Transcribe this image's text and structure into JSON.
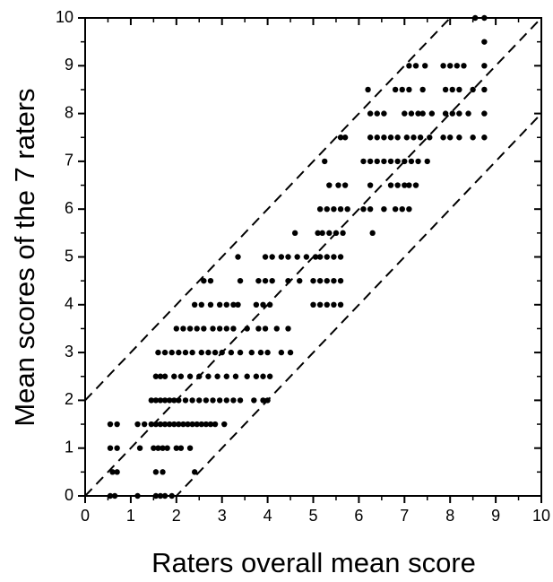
{
  "chart_data": {
    "type": "scatter",
    "x_label": "Raters overall mean score",
    "y_label": "Mean scores of the 7 raters",
    "xlim": [
      0,
      10
    ],
    "ylim": [
      0,
      10
    ],
    "xticks": [
      0,
      1,
      2,
      3,
      4,
      5,
      6,
      7,
      8,
      9,
      10
    ],
    "yticks": [
      0,
      1,
      2,
      3,
      4,
      5,
      6,
      7,
      8,
      9,
      10
    ],
    "xminorticks": [
      0.5,
      1.5,
      2.5,
      3.5,
      4.5,
      5.5,
      6.5,
      7.5,
      8.5,
      9.5
    ],
    "yminorticks": [
      0.5,
      1.5,
      2.5,
      3.5,
      4.5,
      5.5,
      6.5,
      7.5,
      8.5,
      9.5
    ],
    "color": "#000000",
    "reference_lines": [
      {
        "slope": 1,
        "intercept": 2
      },
      {
        "slope": 1,
        "intercept": 0
      },
      {
        "slope": 1,
        "intercept": -2
      }
    ],
    "x": [
      0.55,
      0.65,
      1.15,
      1.55,
      1.65,
      1.75,
      1.9,
      0.6,
      0.7,
      1.55,
      1.7,
      2.4,
      0.55,
      0.7,
      1.2,
      1.5,
      1.6,
      1.7,
      1.8,
      2.0,
      2.1,
      2.3,
      0.55,
      0.7,
      1.15,
      1.3,
      1.45,
      1.55,
      1.65,
      1.75,
      1.85,
      1.95,
      2.05,
      2.15,
      2.25,
      2.35,
      2.45,
      2.55,
      2.65,
      2.75,
      2.85,
      3.05,
      1.45,
      1.55,
      1.65,
      1.75,
      1.85,
      1.95,
      2.05,
      2.2,
      2.35,
      2.5,
      2.65,
      2.8,
      2.95,
      3.1,
      3.25,
      3.4,
      3.7,
      3.9,
      4.0,
      1.55,
      1.65,
      1.75,
      1.95,
      2.1,
      2.3,
      2.5,
      2.7,
      2.9,
      3.1,
      3.3,
      3.55,
      3.75,
      3.9,
      4.05,
      1.6,
      1.75,
      1.9,
      2.05,
      2.2,
      2.35,
      2.55,
      2.7,
      2.85,
      3.0,
      3.2,
      3.4,
      3.65,
      3.85,
      4.0,
      4.3,
      4.5,
      2.0,
      2.15,
      2.3,
      2.45,
      2.6,
      2.8,
      2.95,
      3.1,
      3.25,
      3.55,
      3.8,
      3.95,
      4.2,
      4.45,
      2.4,
      2.55,
      2.75,
      2.95,
      3.1,
      3.25,
      3.35,
      3.75,
      3.9,
      4.05,
      5.0,
      5.15,
      5.3,
      5.45,
      5.6,
      2.6,
      2.75,
      3.4,
      3.8,
      3.95,
      4.1,
      4.45,
      4.7,
      5.0,
      5.15,
      5.3,
      5.45,
      5.6,
      3.35,
      3.95,
      4.1,
      4.3,
      4.45,
      4.65,
      4.85,
      5.05,
      5.15,
      5.3,
      5.45,
      5.6,
      4.6,
      5.1,
      5.2,
      5.35,
      5.5,
      5.65,
      6.3,
      5.15,
      5.3,
      5.45,
      5.6,
      5.75,
      6.1,
      6.25,
      6.55,
      6.8,
      6.95,
      7.1,
      5.35,
      5.55,
      5.7,
      6.25,
      6.7,
      6.85,
      7.0,
      7.1,
      7.25,
      5.25,
      6.1,
      6.25,
      6.4,
      6.55,
      6.7,
      6.85,
      7.0,
      7.15,
      7.3,
      7.5,
      5.6,
      5.7,
      6.25,
      6.4,
      6.55,
      6.7,
      6.85,
      7.05,
      7.2,
      7.35,
      7.55,
      7.85,
      8.0,
      8.2,
      8.5,
      8.75,
      6.25,
      6.4,
      6.55,
      7.0,
      7.15,
      7.3,
      7.4,
      7.6,
      7.9,
      8.05,
      8.2,
      8.4,
      8.75,
      6.2,
      6.8,
      6.95,
      7.1,
      7.4,
      7.9,
      8.05,
      8.2,
      8.5,
      8.75,
      7.1,
      7.25,
      7.45,
      7.85,
      8.0,
      8.15,
      8.3,
      8.75,
      8.75,
      8.55,
      8.75
    ],
    "values": [
      0,
      0,
      0,
      0,
      0,
      0,
      0,
      0.5,
      0.5,
      0.5,
      0.5,
      0.5,
      1,
      1,
      1,
      1,
      1,
      1,
      1,
      1,
      1,
      1,
      1.5,
      1.5,
      1.5,
      1.5,
      1.5,
      1.5,
      1.5,
      1.5,
      1.5,
      1.5,
      1.5,
      1.5,
      1.5,
      1.5,
      1.5,
      1.5,
      1.5,
      1.5,
      1.5,
      1.5,
      2,
      2,
      2,
      2,
      2,
      2,
      2,
      2,
      2,
      2,
      2,
      2,
      2,
      2,
      2,
      2,
      2,
      2,
      2,
      2.5,
      2.5,
      2.5,
      2.5,
      2.5,
      2.5,
      2.5,
      2.5,
      2.5,
      2.5,
      2.5,
      2.5,
      2.5,
      2.5,
      2.5,
      3,
      3,
      3,
      3,
      3,
      3,
      3,
      3,
      3,
      3,
      3,
      3,
      3,
      3,
      3,
      3,
      3,
      3.5,
      3.5,
      3.5,
      3.5,
      3.5,
      3.5,
      3.5,
      3.5,
      3.5,
      3.5,
      3.5,
      3.5,
      3.5,
      3.5,
      4,
      4,
      4,
      4,
      4,
      4,
      4,
      4,
      4,
      4,
      4,
      4,
      4,
      4,
      4,
      4.5,
      4.5,
      4.5,
      4.5,
      4.5,
      4.5,
      4.5,
      4.5,
      4.5,
      4.5,
      4.5,
      4.5,
      4.5,
      5,
      5,
      5,
      5,
      5,
      5,
      5,
      5,
      5,
      5,
      5,
      5,
      5.5,
      5.5,
      5.5,
      5.5,
      5.5,
      5.5,
      5.5,
      6,
      6,
      6,
      6,
      6,
      6,
      6,
      6,
      6,
      6,
      6,
      6.5,
      6.5,
      6.5,
      6.5,
      6.5,
      6.5,
      6.5,
      6.5,
      6.5,
      7,
      7,
      7,
      7,
      7,
      7,
      7,
      7,
      7,
      7,
      7,
      7.5,
      7.5,
      7.5,
      7.5,
      7.5,
      7.5,
      7.5,
      7.5,
      7.5,
      7.5,
      7.5,
      7.5,
      7.5,
      7.5,
      7.5,
      7.5,
      8,
      8,
      8,
      8,
      8,
      8,
      8,
      8,
      8,
      8,
      8,
      8,
      8,
      8.5,
      8.5,
      8.5,
      8.5,
      8.5,
      8.5,
      8.5,
      8.5,
      8.5,
      8.5,
      9,
      9,
      9,
      9,
      9,
      9,
      9,
      9,
      9.5,
      10,
      10
    ]
  }
}
